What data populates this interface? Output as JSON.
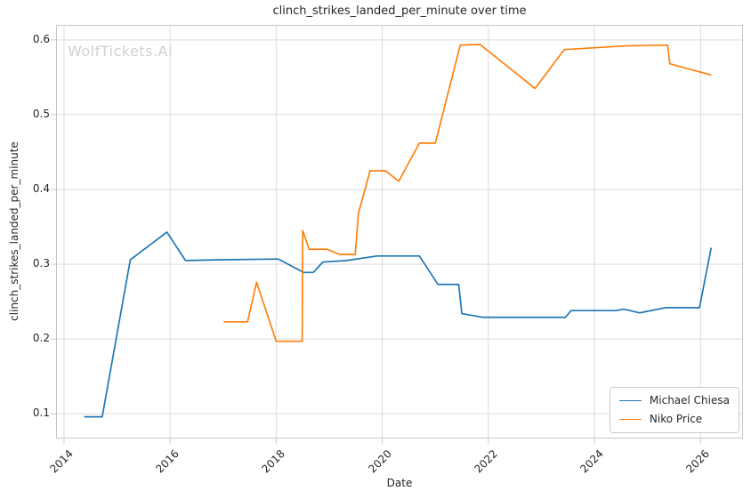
{
  "watermark": "WolfTickets.AI",
  "colors": {
    "blue": "#1f77b4",
    "orange": "#ff7f0e",
    "grid": "#dcdcdc",
    "spine": "#c6c6c6",
    "tick": "#cccccc",
    "text": "#262626",
    "watermark": "#d1d1d1"
  },
  "chart_data": {
    "type": "line",
    "title": "clinch_strikes_landed_per_minute over time",
    "xlabel": "Date",
    "ylabel": "clinch_strikes_landed_per_minute",
    "grid": true,
    "legend_position": "lower right",
    "x_ticks": [
      2014,
      2016,
      2018,
      2020,
      2022,
      2024,
      2026
    ],
    "y_ticks": [
      0.1,
      0.2,
      0.3,
      0.4,
      0.5,
      0.6
    ],
    "xlim": [
      2013.85,
      2026.8
    ],
    "ylim": [
      0.067,
      0.62
    ],
    "series": [
      {
        "name": "Michael Chiesa",
        "color": "#1f77b4",
        "x": [
          2014.38,
          2014.72,
          2015.25,
          2015.94,
          2016.29,
          2017.0,
          2018.04,
          2018.52,
          2018.7,
          2018.88,
          2019.33,
          2019.9,
          2020.7,
          2021.05,
          2021.44,
          2021.5,
          2021.9,
          2023.45,
          2023.56,
          2024.4,
          2024.55,
          2024.85,
          2025.35,
          2025.98,
          2026.2
        ],
        "y": [
          0.096,
          0.096,
          0.306,
          0.343,
          0.305,
          0.306,
          0.307,
          0.289,
          0.289,
          0.303,
          0.305,
          0.311,
          0.311,
          0.273,
          0.273,
          0.234,
          0.229,
          0.229,
          0.238,
          0.238,
          0.24,
          0.235,
          0.242,
          0.242,
          0.322
        ]
      },
      {
        "name": "Niko Price",
        "color": "#ff7f0e",
        "x": [
          2017.01,
          2017.46,
          2017.63,
          2018.0,
          2018.49,
          2018.5,
          2018.62,
          2018.96,
          2019.2,
          2019.49,
          2019.55,
          2019.77,
          2020.06,
          2020.31,
          2020.7,
          2021.0,
          2021.47,
          2021.84,
          2022.88,
          2023.43,
          2024.6,
          2025.38,
          2025.42,
          2026.2
        ],
        "y": [
          0.223,
          0.223,
          0.276,
          0.197,
          0.197,
          0.345,
          0.32,
          0.32,
          0.313,
          0.313,
          0.368,
          0.425,
          0.425,
          0.411,
          0.462,
          0.462,
          0.593,
          0.594,
          0.535,
          0.587,
          0.592,
          0.593,
          0.568,
          0.553
        ]
      }
    ]
  }
}
